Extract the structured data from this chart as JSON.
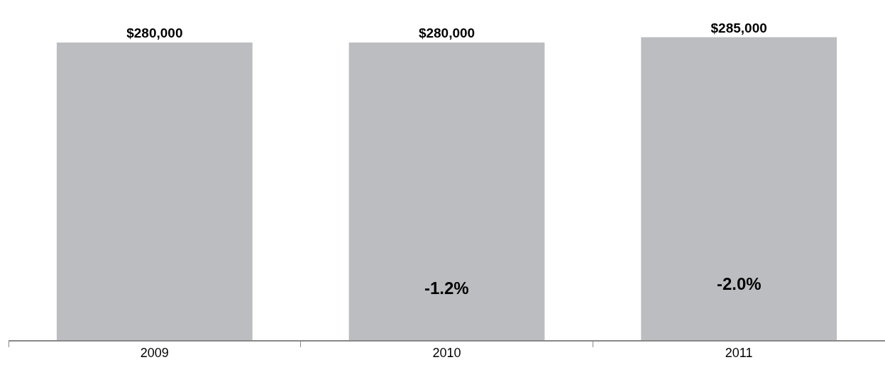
{
  "chart_data": {
    "type": "bar",
    "categories": [
      "2009",
      "2010",
      "2011"
    ],
    "values": [
      280000,
      280000,
      285000
    ],
    "value_labels": [
      "$280,000",
      "$280,000",
      "$285,000"
    ],
    "color": "#bcbdc0",
    "annotations": [
      "-1.2%",
      "-2.0%"
    ],
    "grid": false,
    "legend": false
  }
}
